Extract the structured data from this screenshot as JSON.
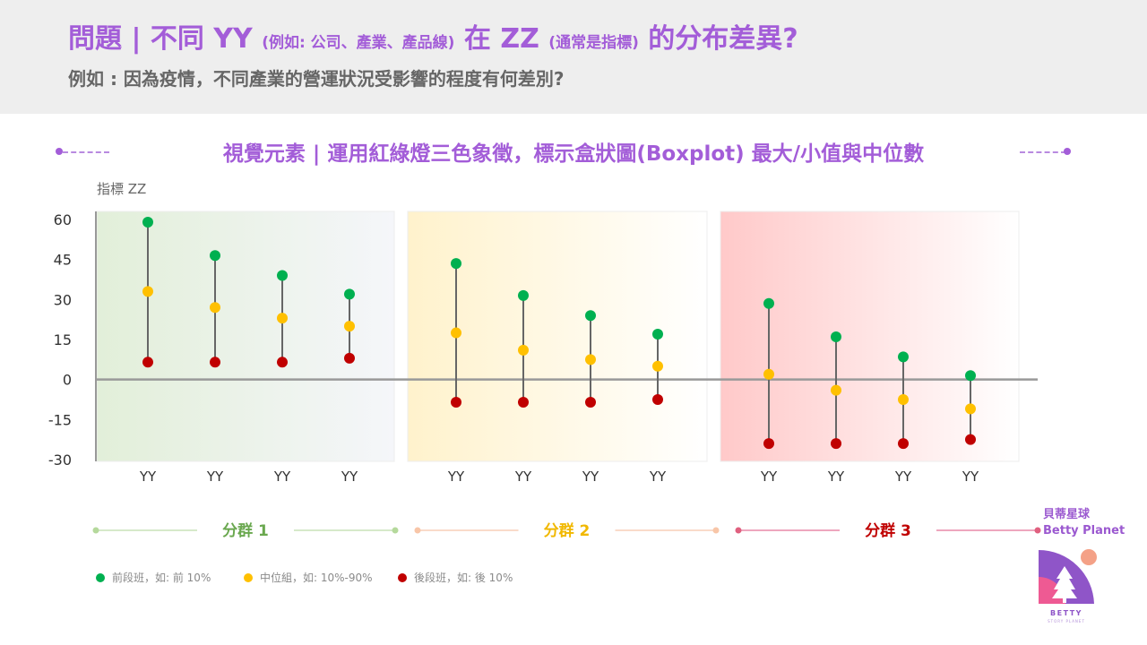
{
  "header": {
    "title_a": "問題 | 不同 YY ",
    "title_b": "(例如: 公司、產業、產品線)",
    "title_c": " 在 ZZ ",
    "title_d": "(通常是指標)",
    "title_e": " 的分布差異?",
    "subtitle": "例如 : 因為疫情，不同產業的營運狀況受影響的程度有何差別?"
  },
  "visual_note": "視覺元素 | 運用紅綠燈三色象徵，標示盒狀圖(Boxplot) 最大/小值與中位數",
  "chart_data": {
    "type": "scatter",
    "ylabel": "指標 ZZ",
    "ylim": [
      -30,
      60
    ],
    "yticks": [
      60,
      45,
      30,
      15,
      0,
      -15,
      -30
    ],
    "groups": [
      {
        "name": "分群 1",
        "color": "#6aa84f",
        "categories": [
          "YY",
          "YY",
          "YY",
          "YY"
        ],
        "max": [
          59,
          46.5,
          39,
          32
        ],
        "median": [
          33,
          27,
          23,
          20
        ],
        "min": [
          6.5,
          6.5,
          6.5,
          8
        ]
      },
      {
        "name": "分群 2",
        "color": "#f1b800",
        "categories": [
          "YY",
          "YY",
          "YY",
          "YY"
        ],
        "max": [
          43.5,
          31.5,
          24,
          17
        ],
        "median": [
          17.5,
          11,
          7.5,
          5
        ],
        "min": [
          -8.5,
          -8.5,
          -8.5,
          -7.5
        ]
      },
      {
        "name": "分群 3",
        "color": "#c00000",
        "categories": [
          "YY",
          "YY",
          "YY",
          "YY"
        ],
        "max": [
          28.5,
          16,
          8.5,
          1.5
        ],
        "median": [
          2,
          -4,
          -7.5,
          -11
        ],
        "min": [
          -24,
          -24,
          -24,
          -22.5
        ]
      }
    ],
    "series": [
      {
        "name": "前段班，如: 前 10%",
        "color": "#00b050"
      },
      {
        "name": "中位組，如: 10%-90%",
        "color": "#ffc000"
      },
      {
        "name": "後段班，如: 後 10%",
        "color": "#c00000"
      }
    ]
  },
  "logo": {
    "name_zh": "貝蒂星球",
    "name_en": "Betty Planet",
    "badge_top": "BETTY",
    "badge_bottom": "STORY PLANET"
  }
}
